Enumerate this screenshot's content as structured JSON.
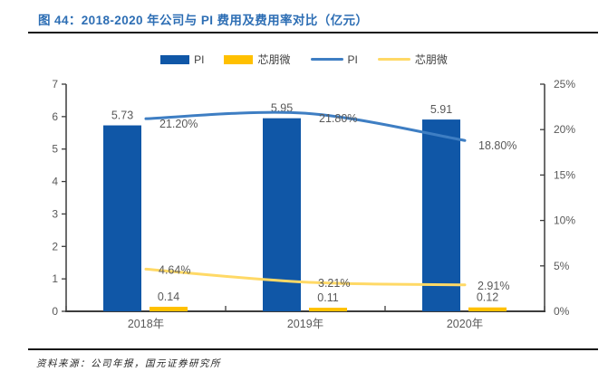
{
  "figure": {
    "title": "图 44：2018-2020 年公司与 PI 费用及费用率对比（亿元）",
    "source": "资料来源：公司年报，国元证券研究所"
  },
  "colors": {
    "title": "#2d6eb4",
    "rule": "#141414",
    "axis": "#3c3c3c",
    "label": "#595959",
    "bar_pi": "#1057a7",
    "bar_xpw": "#ffc000",
    "line_pi": "#3e7ec3",
    "line_xpw": "#ffd966"
  },
  "legend": [
    {
      "label": "PI",
      "swatch": "bar",
      "color_key": "bar_pi"
    },
    {
      "label": "芯朋微",
      "swatch": "bar",
      "color_key": "bar_xpw"
    },
    {
      "label": "PI",
      "swatch": "line",
      "color_key": "line_pi"
    },
    {
      "label": "芯朋微",
      "swatch": "line",
      "color_key": "line_xpw"
    }
  ],
  "chart_data": {
    "type": "combo bar+line",
    "categories": [
      "2018年",
      "2019年",
      "2020年"
    ],
    "series": [
      {
        "name": "PI",
        "type": "bar",
        "axis": "left",
        "values": [
          5.73,
          5.95,
          5.91
        ],
        "labels": [
          "5.73",
          "5.95",
          "5.91"
        ],
        "color_key": "bar_pi"
      },
      {
        "name": "芯朋微",
        "type": "bar",
        "axis": "left",
        "values": [
          0.14,
          0.11,
          0.12
        ],
        "labels": [
          "0.14",
          "0.11",
          "0.12"
        ],
        "color_key": "bar_xpw"
      },
      {
        "name": "PI",
        "type": "line",
        "axis": "right",
        "values": [
          21.2,
          21.8,
          18.8
        ],
        "labels": [
          "21.20%",
          "21.80%",
          "18.80%"
        ],
        "color_key": "line_pi"
      },
      {
        "name": "芯朋微",
        "type": "line",
        "axis": "right",
        "values": [
          4.64,
          3.21,
          2.91
        ],
        "labels": [
          "4.64%",
          "3.21%",
          "2.91%"
        ],
        "color_key": "line_xpw"
      }
    ],
    "left_axis": {
      "min": 0,
      "max": 7,
      "ticks": [
        "0",
        "1",
        "2",
        "3",
        "4",
        "5",
        "6",
        "7"
      ]
    },
    "right_axis": {
      "min": 0,
      "max": 25,
      "ticks": [
        "0%",
        "5%",
        "10%",
        "15%",
        "20%",
        "25%"
      ]
    },
    "grid": false,
    "legend_position": "top"
  }
}
